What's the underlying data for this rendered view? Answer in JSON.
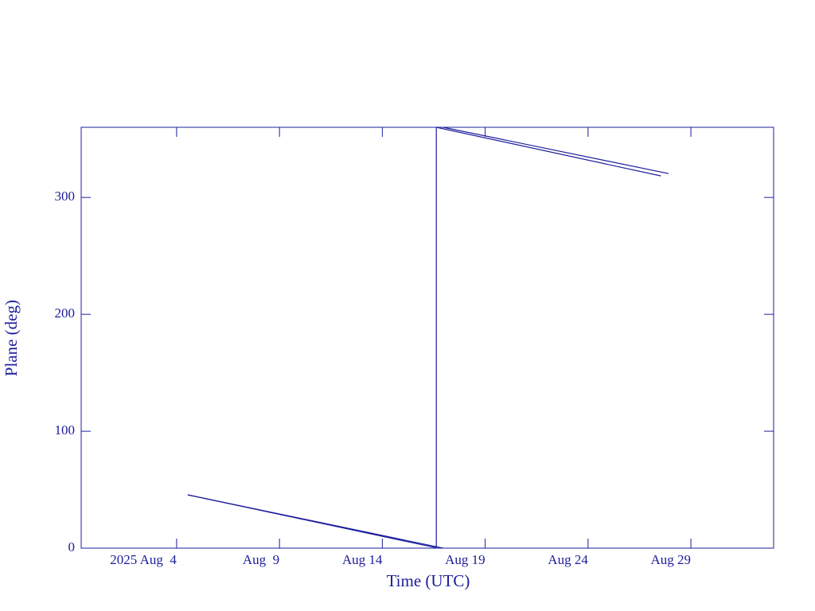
{
  "chart_data": {
    "type": "line",
    "x_label": "Time (UTC)",
    "y_label": "Plane (deg)",
    "xlim": [
      "2025-07-30T08:40",
      "2025-09-02T00:30"
    ],
    "ylim": [
      0,
      360
    ],
    "xticks": [
      {
        "value": "2025-08-04",
        "label": "2025 Aug  4"
      },
      {
        "value": "2025-08-09",
        "label": "Aug  9"
      },
      {
        "value": "2025-08-14",
        "label": "Aug 14"
      },
      {
        "value": "2025-08-19",
        "label": "Aug 19"
      },
      {
        "value": "2025-08-24",
        "label": "Aug 24"
      },
      {
        "value": "2025-08-29",
        "label": "Aug 29"
      }
    ],
    "yticks": [
      0,
      100,
      200,
      300
    ],
    "color": "#1c1c9c",
    "series": [
      {
        "color": "#1c1c9c",
        "x": [
          "2025-08-04T13:00",
          "2025-08-16T15:00",
          "2025-08-16T15:00",
          "2025-08-27T13:00"
        ],
        "values": [
          45.6,
          0.3,
          360,
          318.4
        ]
      },
      {
        "color": "#1c1c9c",
        "x": [
          "2025-08-04T13:00",
          "2025-08-16T23:00",
          "2025-08-16T23:00",
          "2025-08-16T23:00",
          "2025-08-27T22:00"
        ],
        "values": [
          45.6,
          0,
          null,
          360,
          320.4
        ]
      }
    ]
  }
}
